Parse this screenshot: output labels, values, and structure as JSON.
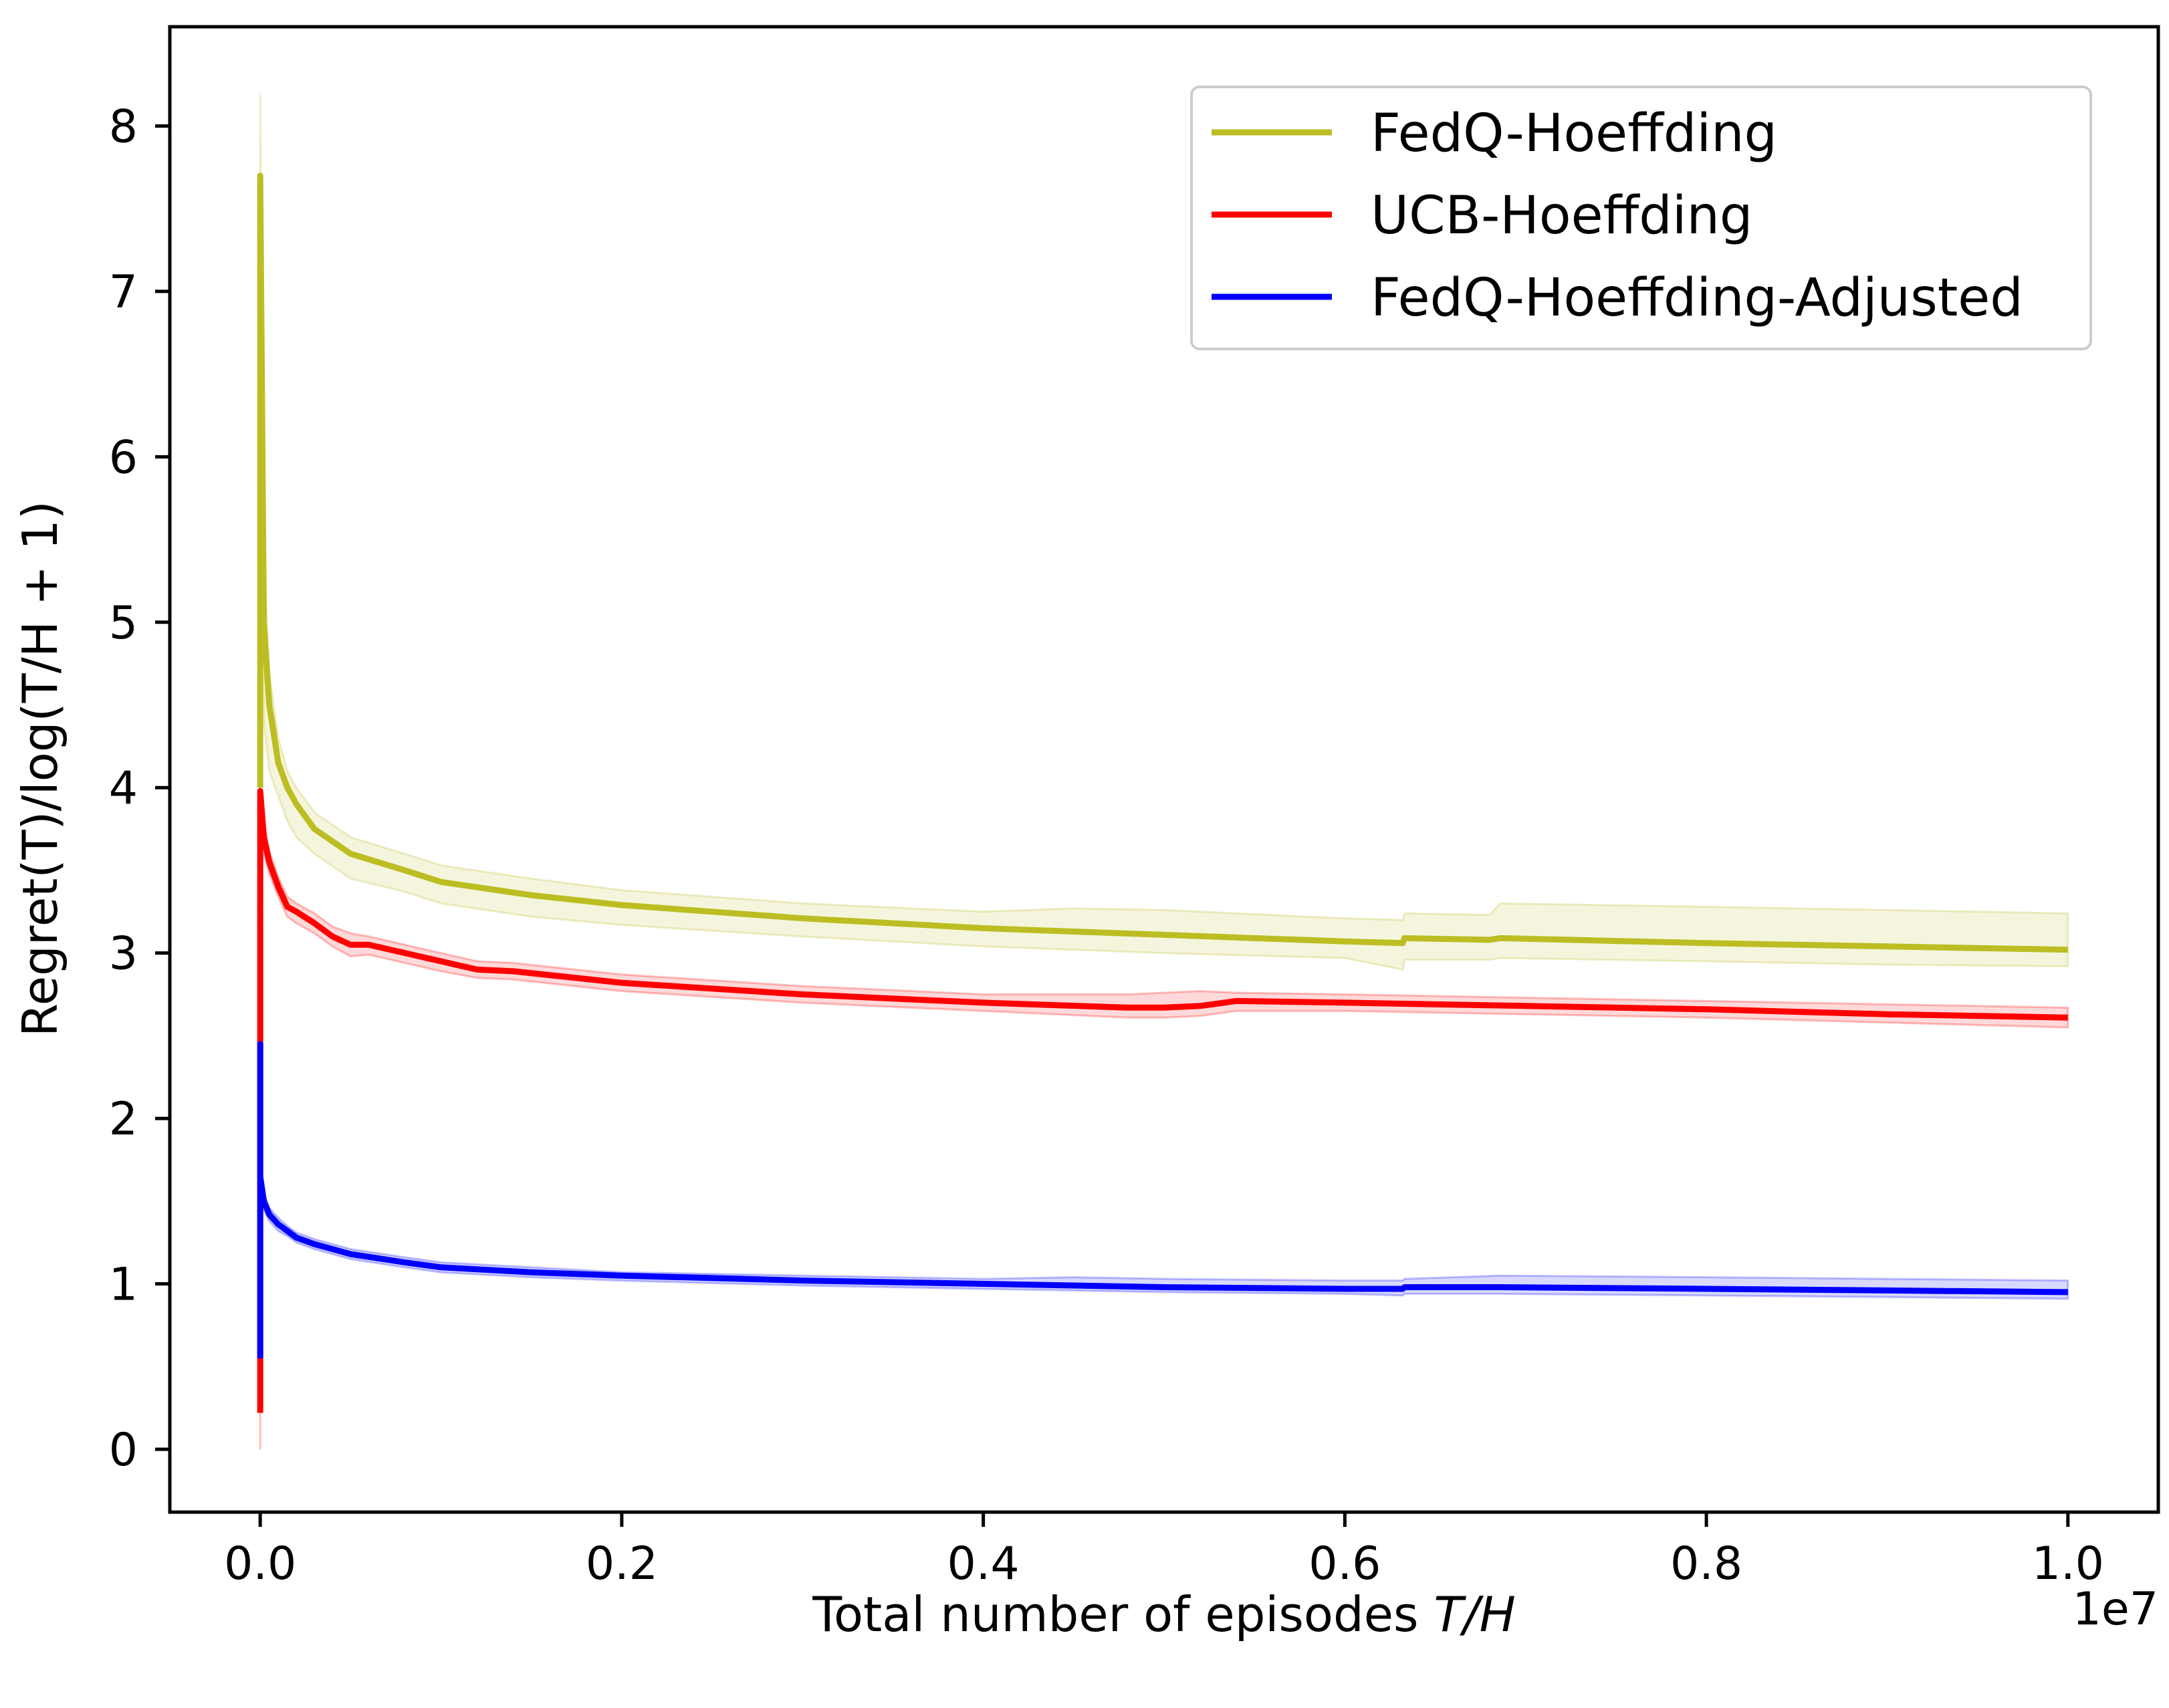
{
  "chart_data": {
    "type": "line",
    "title": "",
    "xlabel_prefix": "Total number of episodes ",
    "xlabel_math": "T/H",
    "ylabel": "Regret(T)/log(T/H + 1)",
    "x_offset_label": "1e7",
    "xlim": [
      -0.05,
      1.05
    ],
    "ylim": [
      -0.38,
      8.6
    ],
    "x_ticks": [
      0.0,
      0.2,
      0.4,
      0.6,
      0.8,
      1.0
    ],
    "x_tick_labels": [
      "0.0",
      "0.2",
      "0.4",
      "0.6",
      "0.8",
      "1.0"
    ],
    "y_ticks": [
      0,
      1,
      2,
      3,
      4,
      5,
      6,
      7,
      8
    ],
    "y_tick_labels": [
      "0",
      "1",
      "2",
      "3",
      "4",
      "5",
      "6",
      "7",
      "8"
    ],
    "grid": false,
    "legend_position": "top-right",
    "series": [
      {
        "name": "FedQ-Hoeffding",
        "color": "#bcbd22",
        "x": [
          0.0,
          0.0,
          0.002,
          0.005,
          0.01,
          0.015,
          0.02,
          0.03,
          0.05,
          0.08,
          0.1,
          0.15,
          0.2,
          0.3,
          0.4,
          0.45,
          0.5,
          0.6,
          0.632,
          0.633,
          0.68,
          0.686,
          0.8,
          0.9,
          1.0
        ],
        "y": [
          4.0,
          7.7,
          5.0,
          4.5,
          4.15,
          4.0,
          3.9,
          3.75,
          3.6,
          3.5,
          3.43,
          3.35,
          3.29,
          3.21,
          3.15,
          3.13,
          3.11,
          3.07,
          3.06,
          3.09,
          3.08,
          3.09,
          3.06,
          3.04,
          3.02
        ],
        "upper": [
          4.4,
          8.2,
          5.4,
          4.7,
          4.3,
          4.1,
          4.0,
          3.85,
          3.7,
          3.6,
          3.53,
          3.45,
          3.38,
          3.3,
          3.25,
          3.27,
          3.26,
          3.21,
          3.2,
          3.24,
          3.23,
          3.3,
          3.28,
          3.26,
          3.24
        ],
        "lower": [
          3.8,
          7.2,
          4.4,
          4.1,
          3.95,
          3.8,
          3.7,
          3.6,
          3.45,
          3.37,
          3.3,
          3.22,
          3.17,
          3.1,
          3.04,
          3.02,
          3.0,
          2.97,
          2.9,
          2.96,
          2.96,
          2.97,
          2.95,
          2.93,
          2.92
        ]
      },
      {
        "name": "UCB-Hoeffding",
        "color": "#ff0000",
        "x": [
          0.0,
          0.0,
          0.0,
          0.002,
          0.005,
          0.01,
          0.015,
          0.02,
          0.03,
          0.04,
          0.05,
          0.06,
          0.1,
          0.12,
          0.14,
          0.2,
          0.3,
          0.4,
          0.48,
          0.5,
          0.52,
          0.54,
          0.6,
          0.7,
          0.8,
          0.9,
          1.0
        ],
        "y": [
          0.22,
          3.3,
          3.98,
          3.7,
          3.55,
          3.4,
          3.28,
          3.25,
          3.18,
          3.1,
          3.05,
          3.05,
          2.95,
          2.9,
          2.89,
          2.82,
          2.75,
          2.7,
          2.67,
          2.67,
          2.68,
          2.71,
          2.7,
          2.68,
          2.66,
          2.63,
          2.61
        ],
        "upper": [
          0.5,
          3.5,
          4.0,
          3.8,
          3.62,
          3.46,
          3.34,
          3.3,
          3.24,
          3.16,
          3.12,
          3.1,
          3.0,
          2.95,
          2.94,
          2.87,
          2.8,
          2.75,
          2.75,
          2.76,
          2.77,
          2.76,
          2.75,
          2.73,
          2.71,
          2.69,
          2.67
        ],
        "lower": [
          0.0,
          3.1,
          3.9,
          3.6,
          3.48,
          3.34,
          3.22,
          3.18,
          3.12,
          3.04,
          2.98,
          2.99,
          2.89,
          2.85,
          2.84,
          2.77,
          2.7,
          2.65,
          2.61,
          2.61,
          2.62,
          2.65,
          2.65,
          2.63,
          2.61,
          2.58,
          2.55
        ]
      },
      {
        "name": "FedQ-Hoeffding-Adjusted",
        "color": "#0000ff",
        "x": [
          0.0,
          0.0,
          0.0,
          0.002,
          0.005,
          0.01,
          0.015,
          0.02,
          0.03,
          0.05,
          0.08,
          0.1,
          0.15,
          0.2,
          0.3,
          0.4,
          0.45,
          0.5,
          0.6,
          0.632,
          0.633,
          0.686,
          0.8,
          0.9,
          1.0
        ],
        "y": [
          0.55,
          2.45,
          1.65,
          1.5,
          1.42,
          1.36,
          1.32,
          1.28,
          1.24,
          1.18,
          1.13,
          1.1,
          1.07,
          1.05,
          1.02,
          1.0,
          0.99,
          0.98,
          0.97,
          0.97,
          0.98,
          0.98,
          0.97,
          0.96,
          0.95
        ],
        "upper": [
          0.6,
          2.5,
          1.7,
          1.55,
          1.46,
          1.4,
          1.35,
          1.31,
          1.27,
          1.21,
          1.16,
          1.13,
          1.1,
          1.07,
          1.05,
          1.03,
          1.04,
          1.03,
          1.02,
          1.02,
          1.03,
          1.05,
          1.04,
          1.03,
          1.02
        ],
        "lower": [
          0.5,
          2.4,
          1.6,
          1.45,
          1.38,
          1.32,
          1.29,
          1.25,
          1.21,
          1.15,
          1.1,
          1.07,
          1.04,
          1.02,
          0.99,
          0.97,
          0.96,
          0.95,
          0.94,
          0.93,
          0.94,
          0.94,
          0.93,
          0.92,
          0.91
        ]
      }
    ]
  }
}
